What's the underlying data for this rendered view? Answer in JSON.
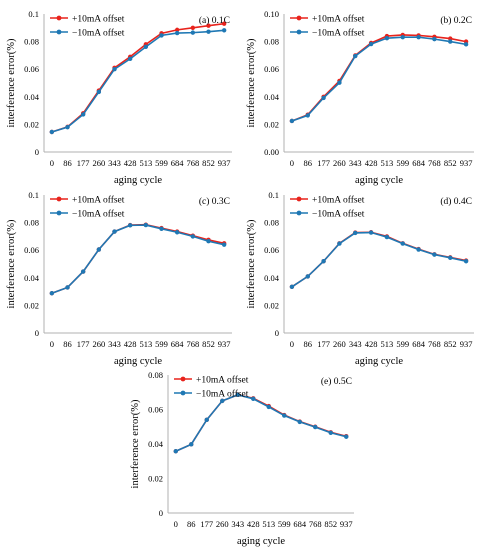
{
  "colors": {
    "plus": "#e8231c",
    "minus": "#1f78b4",
    "axis": "#b0b0b0"
  },
  "chart_data": [
    {
      "type": "line",
      "panel_label": "(a) 0.1C",
      "xlabel": "aging cycle",
      "ylabel": "interference error(%)",
      "categories": [
        "0",
        "86",
        "177",
        "260",
        "343",
        "428",
        "513",
        "599",
        "684",
        "768",
        "852",
        "937"
      ],
      "ylim": [
        0,
        0.1
      ],
      "yticks": [
        "0",
        "0.02",
        "0.04",
        "0.06",
        "0.08",
        "0.1"
      ],
      "grid": false,
      "legend_position": "top-left",
      "series": [
        {
          "name": "+10mA offset",
          "color_key": "plus",
          "values": [
            0.0145,
            0.0182,
            0.028,
            0.0445,
            0.061,
            0.069,
            0.078,
            0.086,
            0.0885,
            0.09,
            0.0915,
            0.093
          ]
        },
        {
          "name": "−10mA offset",
          "color_key": "minus",
          "values": [
            0.0145,
            0.018,
            0.0272,
            0.0435,
            0.06,
            0.0675,
            0.0762,
            0.0845,
            0.0862,
            0.0865,
            0.0872,
            0.0882
          ]
        }
      ]
    },
    {
      "type": "line",
      "panel_label": "(b) 0.2C",
      "xlabel": "aging cycle",
      "ylabel": "interference error(%)",
      "categories": [
        "0",
        "86",
        "177",
        "260",
        "343",
        "428",
        "513",
        "599",
        "684",
        "768",
        "852",
        "937"
      ],
      "ylim": [
        0,
        0.1
      ],
      "yticks": [
        "0.00",
        "0.02",
        "0.04",
        "0.06",
        "0.08",
        "0.10"
      ],
      "grid": false,
      "legend_position": "top-left",
      "series": [
        {
          "name": "+10mA offset",
          "color_key": "plus",
          "values": [
            0.0225,
            0.027,
            0.04,
            0.0515,
            0.07,
            0.079,
            0.084,
            0.0848,
            0.0845,
            0.0835,
            0.0822,
            0.08
          ]
        },
        {
          "name": "−10mA offset",
          "color_key": "minus",
          "values": [
            0.0225,
            0.0265,
            0.0392,
            0.0502,
            0.0695,
            0.0782,
            0.0825,
            0.0832,
            0.0832,
            0.0818,
            0.08,
            0.078
          ]
        }
      ]
    },
    {
      "type": "line",
      "panel_label": "(c) 0.3C",
      "xlabel": "aging cycle",
      "ylabel": "interference error(%)",
      "categories": [
        "0",
        "86",
        "177",
        "260",
        "343",
        "428",
        "513",
        "599",
        "684",
        "768",
        "852",
        "937"
      ],
      "ylim": [
        0,
        0.1
      ],
      "yticks": [
        "0",
        "0.02",
        "0.04",
        "0.06",
        "0.08",
        "0.1"
      ],
      "grid": false,
      "legend_position": "top-left",
      "series": [
        {
          "name": "+10mA offset",
          "color_key": "plus",
          "values": [
            0.0288,
            0.033,
            0.0445,
            0.0605,
            0.0735,
            0.0782,
            0.0785,
            0.076,
            0.0735,
            0.0705,
            0.0675,
            0.065
          ]
        },
        {
          "name": "−10mA offset",
          "color_key": "minus",
          "values": [
            0.0288,
            0.033,
            0.0445,
            0.0605,
            0.0735,
            0.078,
            0.0782,
            0.0755,
            0.073,
            0.07,
            0.0665,
            0.064
          ]
        }
      ]
    },
    {
      "type": "line",
      "panel_label": "(d) 0.4C",
      "xlabel": "aging cycle",
      "ylabel": "interference error(%)",
      "categories": [
        "0",
        "86",
        "177",
        "260",
        "343",
        "428",
        "513",
        "599",
        "684",
        "768",
        "852",
        "937"
      ],
      "ylim": [
        0,
        0.1
      ],
      "yticks": [
        "0",
        "0.02",
        "0.04",
        "0.06",
        "0.08",
        "0.1"
      ],
      "grid": false,
      "legend_position": "top-left",
      "series": [
        {
          "name": "+10mA offset",
          "color_key": "plus",
          "values": [
            0.0335,
            0.041,
            0.052,
            0.065,
            0.0728,
            0.073,
            0.07,
            0.065,
            0.0608,
            0.057,
            0.0548,
            0.0525
          ]
        },
        {
          "name": "−10mA offset",
          "color_key": "minus",
          "values": [
            0.0335,
            0.041,
            0.052,
            0.0648,
            0.0725,
            0.0728,
            0.0695,
            0.0648,
            0.0605,
            0.0568,
            0.0545,
            0.052
          ]
        }
      ]
    },
    {
      "type": "line",
      "panel_label": "(e) 0.5C",
      "xlabel": "aging cycle",
      "ylabel": "interference error(%)",
      "categories": [
        "0",
        "86",
        "177",
        "260",
        "343",
        "428",
        "513",
        "599",
        "684",
        "768",
        "852",
        "937"
      ],
      "ylim": [
        0,
        0.08
      ],
      "yticks": [
        "0",
        "0.02",
        "0.04",
        "0.06",
        "0.08"
      ],
      "grid": false,
      "legend_position": "top-left",
      "series": [
        {
          "name": "+10mA offset",
          "color_key": "plus",
          "values": [
            0.0358,
            0.0398,
            0.054,
            0.065,
            0.0685,
            0.0665,
            0.062,
            0.0568,
            0.053,
            0.05,
            0.0468,
            0.0445
          ]
        },
        {
          "name": "−10mA offset",
          "color_key": "minus",
          "values": [
            0.0358,
            0.0398,
            0.054,
            0.065,
            0.0685,
            0.0662,
            0.0615,
            0.0565,
            0.0528,
            0.0498,
            0.0465,
            0.0442
          ]
        }
      ]
    }
  ]
}
